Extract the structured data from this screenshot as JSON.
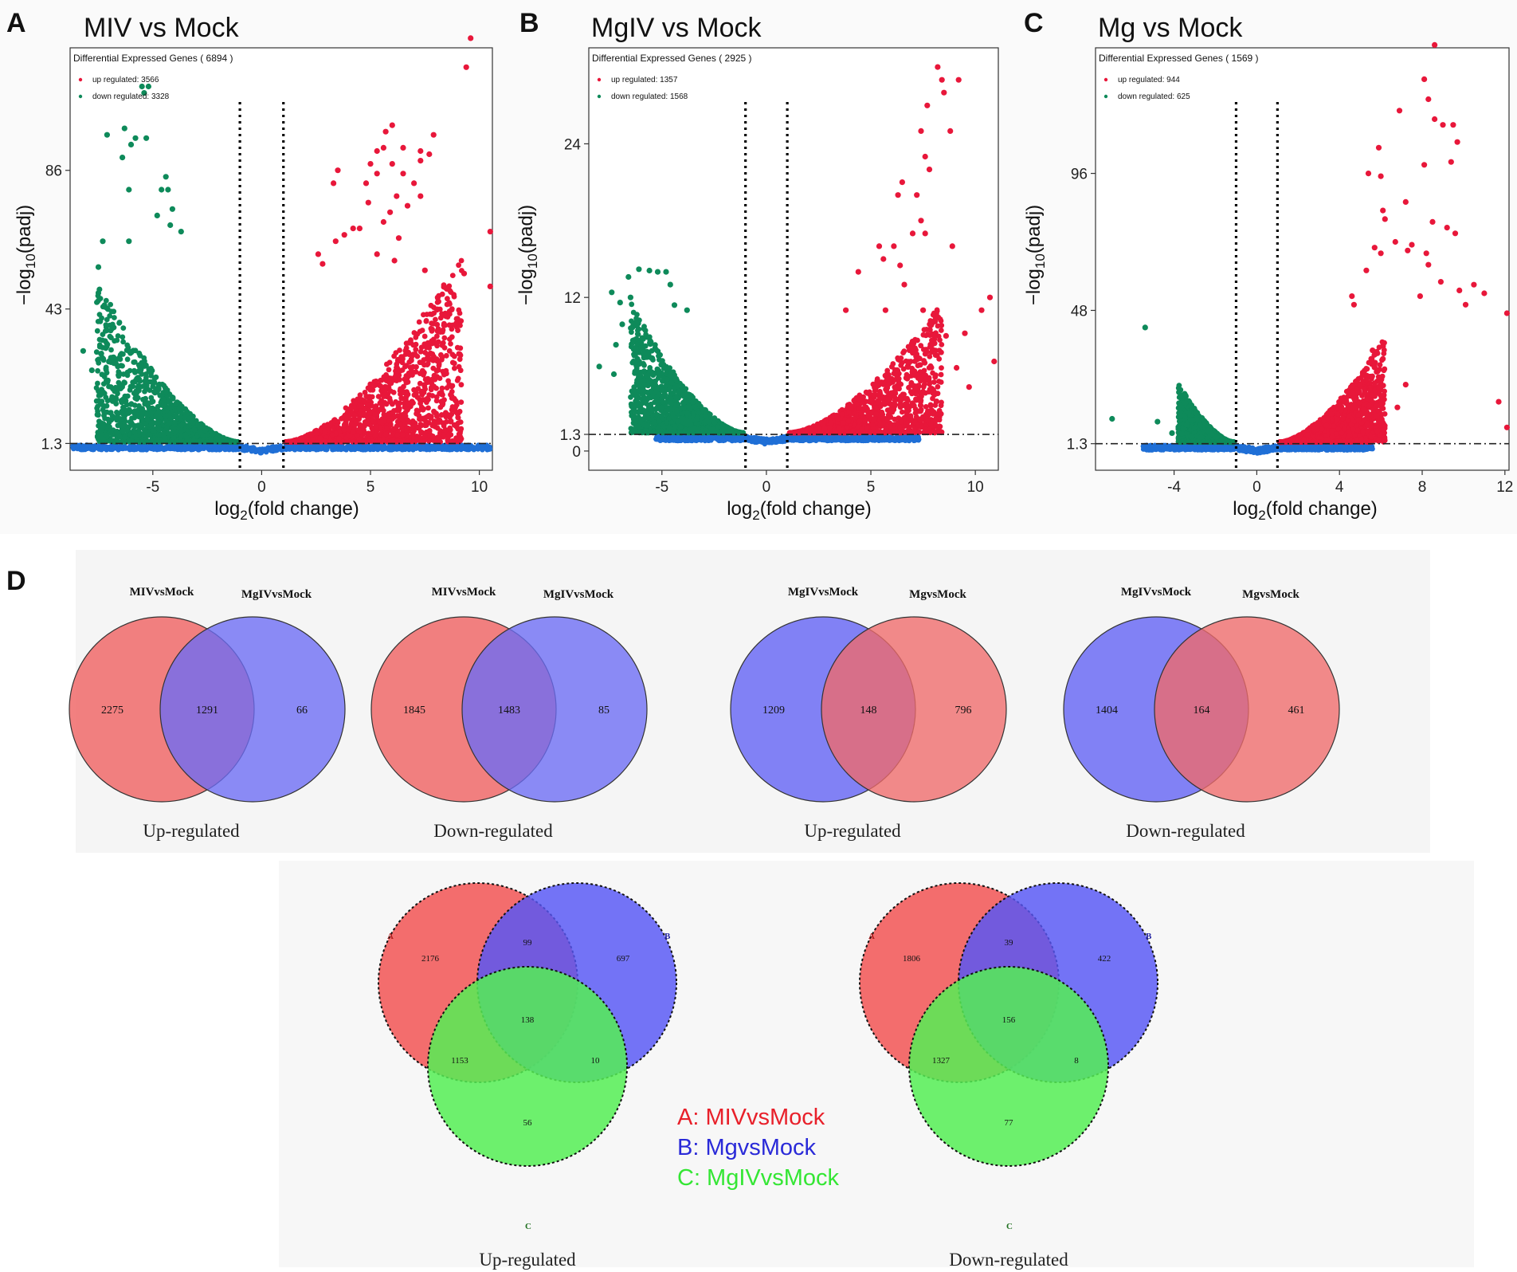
{
  "colors": {
    "up": "#e8173a",
    "down": "#0e8a5a",
    "ns": "#1f6fd6",
    "venn_red": "#f06a6a",
    "venn_blue": "#6c6cf5",
    "venn_green": "#55ee55",
    "key_a": "#e8202a",
    "key_b": "#2a2ad8",
    "key_c": "#34e634"
  },
  "chart_data": [
    {
      "id": "A",
      "type": "scatter",
      "title": "MIV vs Mock",
      "xlabel": "log2(fold change)",
      "ylabel": "-log10(padj)",
      "xlim": [
        -8.8,
        10.6
      ],
      "ylim": [
        -7,
        124
      ],
      "xticks": [
        -5,
        0,
        5,
        10
      ],
      "yticks": [
        1.3,
        43,
        86
      ],
      "ytick_labels": [
        "1.3",
        "43",
        "86"
      ],
      "thresholds": {
        "x": [
          -1,
          1
        ],
        "y": 1.3
      },
      "legend": {
        "title": "Differential Expressed Genes ( 6894 )",
        "up_label": "up regulated: 3566",
        "down_label": "down regulated: 3328"
      },
      "points": {
        "up": [
          [
            9.6,
            127
          ],
          [
            9.4,
            118
          ],
          [
            7.9,
            97
          ],
          [
            6,
            100
          ],
          [
            5.7,
            98
          ],
          [
            7.3,
            92
          ],
          [
            7.7,
            91
          ],
          [
            7.3,
            89
          ],
          [
            5.6,
            93
          ],
          [
            6.5,
            93
          ],
          [
            5,
            88
          ],
          [
            5.3,
            92
          ],
          [
            6,
            88
          ],
          [
            6.5,
            85
          ],
          [
            7,
            82
          ],
          [
            4.8,
            82
          ],
          [
            5.3,
            85
          ],
          [
            4.9,
            76
          ],
          [
            6.2,
            78
          ],
          [
            7.3,
            78
          ],
          [
            5.9,
            73
          ],
          [
            6.7,
            75
          ],
          [
            5.6,
            70
          ],
          [
            4.5,
            68
          ],
          [
            6.3,
            65
          ],
          [
            5.3,
            60
          ],
          [
            6.1,
            58
          ],
          [
            9.3,
            54
          ],
          [
            7.5,
            55
          ],
          [
            10.5,
            67
          ],
          [
            10.5,
            50
          ],
          [
            3.3,
            82
          ],
          [
            3.5,
            86
          ],
          [
            4.2,
            68
          ],
          [
            2.6,
            60
          ],
          [
            3.4,
            64
          ],
          [
            3.8,
            66
          ],
          [
            2.8,
            57
          ]
        ],
        "down": [
          [
            -5.4,
            110
          ],
          [
            -5.5,
            112
          ],
          [
            -5.2,
            112
          ],
          [
            -5.8,
            96
          ],
          [
            -5.3,
            96
          ],
          [
            -6.3,
            99
          ],
          [
            -6,
            94
          ],
          [
            -7.1,
            97
          ],
          [
            -6.4,
            90
          ],
          [
            -4.3,
            80
          ],
          [
            -4.4,
            84
          ],
          [
            -4.6,
            80
          ],
          [
            -6.1,
            80
          ],
          [
            -7.3,
            64
          ],
          [
            -7.5,
            56
          ],
          [
            -7.5,
            48
          ],
          [
            -8.2,
            30
          ],
          [
            -7.8,
            24
          ],
          [
            -6.8,
            28
          ],
          [
            -4.1,
            74
          ],
          [
            -4.8,
            72
          ],
          [
            -4.2,
            69
          ],
          [
            -6.1,
            64
          ],
          [
            -3.7,
            67
          ]
        ],
        "up_clouds": [
          [
            1.1,
            9.2,
            1.3,
            60
          ]
        ],
        "down_clouds": [
          [
            -7.6,
            -1.1,
            1.3,
            52
          ]
        ],
        "ns_band": [
          -8.7,
          10.5
        ]
      }
    },
    {
      "id": "B",
      "type": "scatter",
      "title": "MgIV vs Mock",
      "xlabel": "log2(fold change)",
      "ylabel": "-log10(padj)",
      "xlim": [
        -8.5,
        11.1
      ],
      "ylim": [
        -1.5,
        31.5
      ],
      "xticks": [
        -5,
        0,
        5,
        10
      ],
      "yticks": [
        0,
        1.3,
        12,
        24
      ],
      "ytick_labels": [
        "0",
        "1.3",
        "12",
        "24"
      ],
      "thresholds": {
        "x": [
          -1,
          1
        ],
        "y": 1.3
      },
      "legend": {
        "title": "Differential Expressed Genes ( 2925 )",
        "up_label": "up regulated: 1357",
        "down_label": "down regulated: 1568"
      },
      "points": {
        "up": [
          [
            8.2,
            30
          ],
          [
            8.4,
            29
          ],
          [
            9.2,
            29
          ],
          [
            8.5,
            28
          ],
          [
            7.7,
            27
          ],
          [
            8.8,
            25
          ],
          [
            7.4,
            25
          ],
          [
            7.6,
            23
          ],
          [
            7.8,
            22
          ],
          [
            6.3,
            20
          ],
          [
            6.5,
            21
          ],
          [
            7.2,
            20
          ],
          [
            7.4,
            18
          ],
          [
            7.6,
            17
          ],
          [
            7,
            17
          ],
          [
            8.9,
            16
          ],
          [
            6.1,
            16
          ],
          [
            6.6,
            13
          ],
          [
            6.4,
            14.5
          ],
          [
            5.6,
            15
          ],
          [
            5.4,
            16
          ],
          [
            7.5,
            11
          ],
          [
            8.6,
            9
          ],
          [
            9.5,
            9.2
          ],
          [
            10.3,
            11
          ],
          [
            10.7,
            12
          ],
          [
            8.1,
            7.5
          ],
          [
            9.1,
            6.5
          ],
          [
            9.7,
            5
          ],
          [
            10.9,
            7
          ],
          [
            4.4,
            14
          ],
          [
            3.8,
            11
          ],
          [
            5.7,
            11
          ]
        ],
        "down": [
          [
            -5.6,
            14.1
          ],
          [
            -6.1,
            14.2
          ],
          [
            -5.2,
            14
          ],
          [
            -4.8,
            14
          ],
          [
            -6.6,
            13.6
          ],
          [
            -6.5,
            12
          ],
          [
            -7,
            11.6
          ],
          [
            -7.4,
            12.4
          ],
          [
            -6.3,
            10
          ],
          [
            -7.2,
            8.3
          ],
          [
            -8,
            6.6
          ],
          [
            -7.3,
            6
          ],
          [
            -5.6,
            5.5
          ],
          [
            -4.6,
            13
          ],
          [
            -4.4,
            11.4
          ],
          [
            -3.8,
            11
          ],
          [
            -6.2,
            7.8
          ],
          [
            -6.9,
            9.9
          ]
        ],
        "up_clouds": [
          [
            1.1,
            8.4,
            1.3,
            11.5
          ]
        ],
        "down_clouds": [
          [
            -6.5,
            -1.1,
            1.3,
            11.5
          ]
        ],
        "ns_band": [
          -5.3,
          7.3
        ]
      }
    },
    {
      "id": "C",
      "type": "scatter",
      "title": "Mg vs Mock",
      "xlabel": "log2(fold change)",
      "ylabel": "-log10(padj)",
      "xlim": [
        -7.8,
        12.2
      ],
      "ylim": [
        -8,
        140
      ],
      "xticks": [
        -4,
        0,
        4,
        8,
        12
      ],
      "yticks": [
        1.3,
        48,
        96
      ],
      "ytick_labels": [
        "1.3",
        "48",
        "96"
      ],
      "thresholds": {
        "x": [
          -1,
          1
        ],
        "y": 1.3
      },
      "legend": {
        "title": "Differential Expressed Genes ( 1569 )",
        "up_label": "up regulated: 944",
        "down_label": "down regulated: 625"
      },
      "points": {
        "up": [
          [
            8.6,
            141
          ],
          [
            8.1,
            129
          ],
          [
            8.3,
            122
          ],
          [
            6.9,
            118
          ],
          [
            8.6,
            115
          ],
          [
            9,
            113
          ],
          [
            9.7,
            107
          ],
          [
            9.5,
            113
          ],
          [
            9.4,
            100
          ],
          [
            8.1,
            99
          ],
          [
            5.9,
            105
          ],
          [
            6,
            95
          ],
          [
            5.4,
            96
          ],
          [
            6.1,
            83
          ],
          [
            6.2,
            80
          ],
          [
            7.2,
            86
          ],
          [
            8.5,
            79
          ],
          [
            9.2,
            77
          ],
          [
            9.6,
            75
          ],
          [
            6.7,
            72
          ],
          [
            5.7,
            70
          ],
          [
            6,
            68
          ],
          [
            7.5,
            71
          ],
          [
            7.3,
            69
          ],
          [
            8.2,
            68
          ],
          [
            8.3,
            64
          ],
          [
            8.9,
            58
          ],
          [
            9.8,
            55
          ],
          [
            10.5,
            57
          ],
          [
            11,
            54
          ],
          [
            10.1,
            50
          ],
          [
            7.9,
            53
          ],
          [
            5.3,
            62
          ],
          [
            4.6,
            53
          ],
          [
            4.7,
            50
          ],
          [
            12.1,
            47
          ],
          [
            11.7,
            16
          ],
          [
            12.1,
            7
          ],
          [
            5.6,
            34
          ],
          [
            6.1,
            31
          ],
          [
            5.7,
            28
          ],
          [
            7.2,
            22
          ],
          [
            6.8,
            14
          ]
        ],
        "down": [
          [
            -5.4,
            42
          ],
          [
            -7,
            10
          ],
          [
            -4.8,
            9
          ],
          [
            -4.1,
            5
          ]
        ],
        "up_clouds": [
          [
            1.1,
            6.2,
            1.3,
            38
          ]
        ],
        "down_clouds": [
          [
            -3.8,
            -1.1,
            1.3,
            22
          ]
        ],
        "ns_band": [
          -5.5,
          5.6
        ]
      }
    }
  ],
  "panel_d": {
    "letter": "D",
    "pairs": [
      {
        "left": "MIVvsMock",
        "right": "MgIVvsMock",
        "a": "2275",
        "ab": "1291",
        "b": "66",
        "caption": "Up-regulated",
        "left_color": "red"
      },
      {
        "left": "MIVvsMock",
        "right": "MgIVvsMock",
        "a": "1845",
        "ab": "1483",
        "b": "85",
        "caption": "Down-regulated",
        "left_color": "red"
      },
      {
        "left": "MgIVvsMock",
        "right": "MgvsMock",
        "a": "1209",
        "ab": "148",
        "b": "796",
        "caption": "Up-regulated",
        "left_color": "blue"
      },
      {
        "left": "MgIVvsMock",
        "right": "MgvsMock",
        "a": "1404",
        "ab": "164",
        "b": "461",
        "caption": "Down-regulated",
        "left_color": "blue"
      }
    ],
    "triples": [
      {
        "set_a": "A",
        "set_b": "B",
        "set_c": "C",
        "a": "2176",
        "ab": "99",
        "b": "697",
        "abc": "138",
        "ac": "1153",
        "bc": "10",
        "c": "56",
        "caption": "Up-regulated"
      },
      {
        "set_a": "A",
        "set_b": "B",
        "set_c": "C",
        "a": "1806",
        "ab": "39",
        "b": "422",
        "abc": "156",
        "ac": "1327",
        "bc": "8",
        "c": "77",
        "caption": "Down-regulated"
      }
    ],
    "key": {
      "a": "A: MIVvsMock",
      "b": "B: MgvsMock",
      "c": "C: MgIVvsMock"
    }
  }
}
